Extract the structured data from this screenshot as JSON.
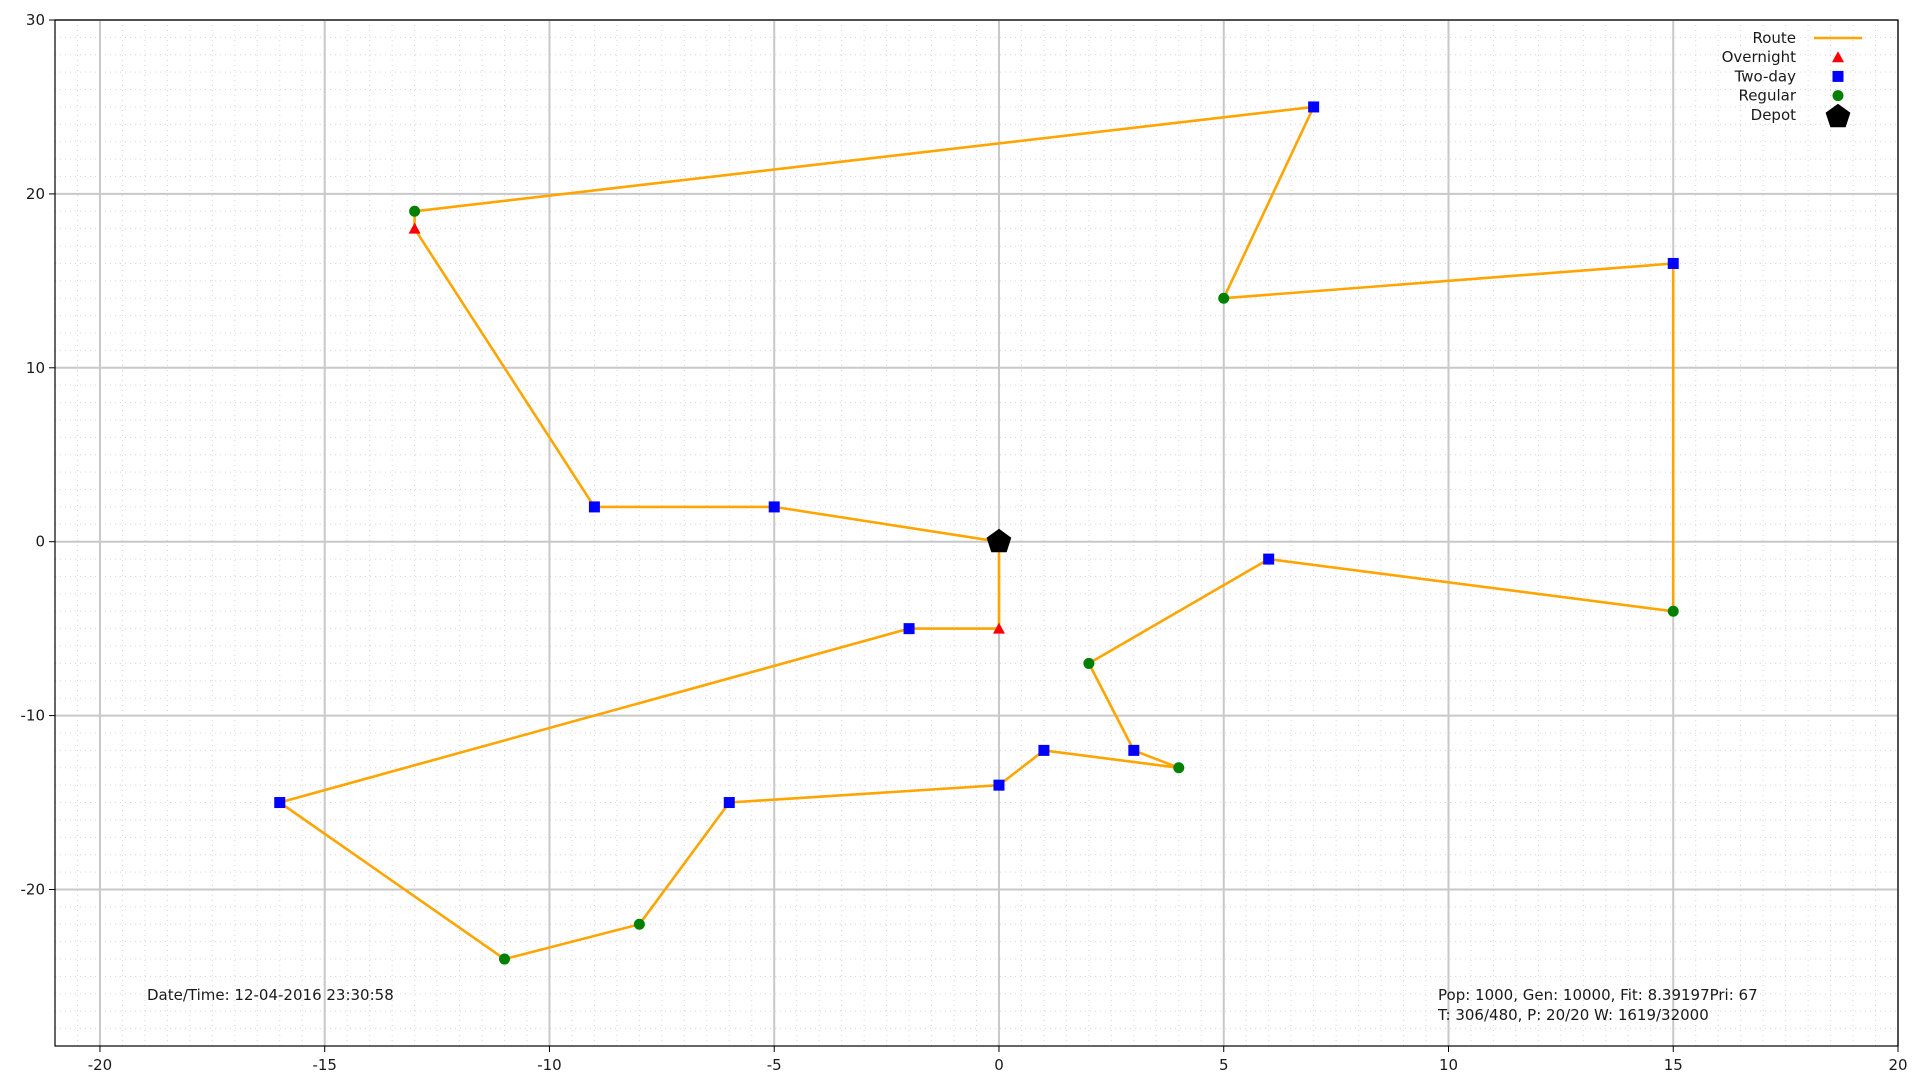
{
  "chart_data": {
    "type": "scatter",
    "xlim": [
      -21,
      20
    ],
    "ylim": [
      -29,
      30
    ],
    "xticks": [
      -20,
      -15,
      -10,
      -5,
      0,
      5,
      10,
      15,
      20
    ],
    "yticks": [
      -20,
      -10,
      0,
      10,
      20,
      30
    ],
    "grid": true,
    "legend_position": "top-right",
    "colors": {
      "route": "#ffa500",
      "overnight": "#ff0000",
      "two_day": "#0000ff",
      "regular": "#008000",
      "depot": "#000000",
      "grid_major": "#c8c8c8",
      "grid_minor": "#d8d8d8"
    },
    "series": [
      {
        "name": "Route",
        "kind": "line",
        "x": [
          0,
          -5,
          -9,
          -13,
          -13,
          7,
          5,
          15,
          15,
          6,
          2,
          3,
          4,
          1,
          0,
          -6,
          -8,
          -11,
          -16,
          -2,
          0,
          0
        ],
        "y": [
          0,
          2,
          2,
          18,
          19,
          25,
          14,
          16,
          -4,
          -1,
          -7,
          -12,
          -13,
          -12,
          -14,
          -15,
          -22,
          -24,
          -15,
          -5,
          -5,
          0
        ]
      },
      {
        "name": "Overnight",
        "kind": "triangle",
        "x": [
          -13,
          0
        ],
        "y": [
          18,
          -5
        ]
      },
      {
        "name": "Two-day",
        "kind": "square",
        "x": [
          -5,
          -9,
          7,
          15,
          6,
          3,
          1,
          0,
          -6,
          -16,
          -2
        ],
        "y": [
          2,
          2,
          25,
          16,
          -1,
          -12,
          -12,
          -14,
          -15,
          -15,
          -5
        ]
      },
      {
        "name": "Regular",
        "kind": "circle",
        "x": [
          -13,
          5,
          15,
          2,
          4,
          -8,
          -11
        ],
        "y": [
          19,
          14,
          -4,
          -7,
          -13,
          -22,
          -24
        ]
      },
      {
        "name": "Depot",
        "kind": "pentagon",
        "x": [
          0
        ],
        "y": [
          0
        ]
      }
    ]
  },
  "annotations": {
    "datetime": "Date/Time: 12-04-2016 23:30:58",
    "stats_line1": "Pop: 1000, Gen: 10000, Fit: 8.39197Pri: 67",
    "stats_line2": "T: 306/480, P: 20/20 W: 1619/32000"
  }
}
